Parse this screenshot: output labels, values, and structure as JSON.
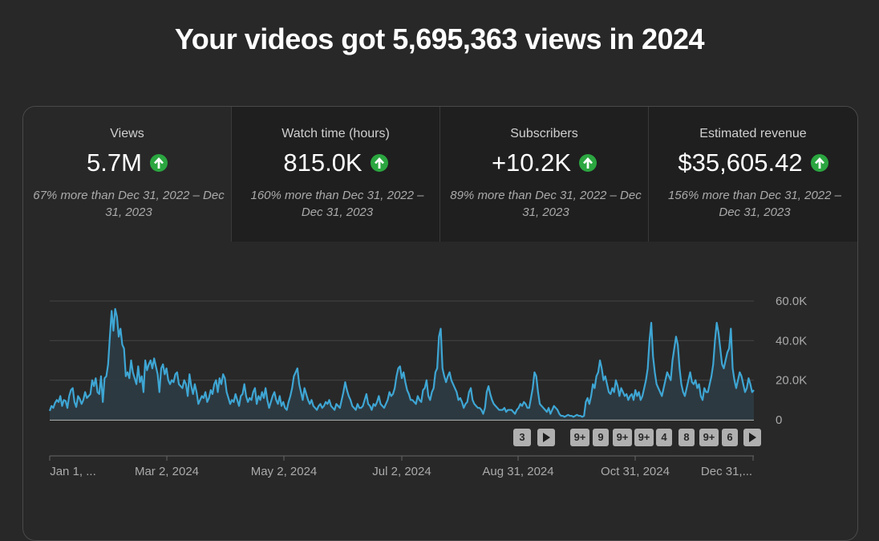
{
  "headline": "Your videos got 5,695,363 views in 2024",
  "metrics": [
    {
      "label": "Views",
      "value": "5.7M",
      "note": "67% more than Dec 31, 2022 – Dec 31, 2023",
      "trend_icon": "arrow-up-icon"
    },
    {
      "label": "Watch time (hours)",
      "value": "815.0K",
      "note": "160% more than Dec 31, 2022 – Dec 31, 2023",
      "trend_icon": "arrow-up-icon"
    },
    {
      "label": "Subscribers",
      "value": "+10.2K",
      "note": "89% more than Dec 31, 2022 – Dec 31, 2023",
      "trend_icon": "arrow-up-icon"
    },
    {
      "label": "Estimated revenue",
      "value": "$35,605.42",
      "note": "156% more than Dec 31, 2022 – Dec 31, 2023",
      "trend_icon": "arrow-up-icon"
    }
  ],
  "colors": {
    "line": "#3ea6d4",
    "area": "#2d3b42",
    "up": "#2ba640"
  },
  "chart_data": {
    "type": "area",
    "series_name": "Views",
    "x_tick_labels": [
      "Jan 1, ...",
      "Mar 2, 2024",
      "May 2, 2024",
      "Jul 2, 2024",
      "Aug 31, 2024",
      "Oct 31, 2024",
      "Dec 31,..."
    ],
    "y_tick_labels": [
      "0",
      "20.0K",
      "40.0K",
      "60.0K"
    ],
    "ylim": [
      0,
      60000
    ],
    "grid": true,
    "values": [
      4500,
      7000,
      6000,
      8500,
      10000,
      9000,
      12000,
      7000,
      10000,
      9500,
      6000,
      12000,
      15000,
      16000,
      9000,
      6500,
      12000,
      10500,
      8000,
      10000,
      14000,
      11000,
      12000,
      13000,
      20000,
      17000,
      21000,
      14000,
      13000,
      22000,
      9000,
      21000,
      22000,
      28000,
      42000,
      55000,
      45000,
      56000,
      52000,
      42000,
      46000,
      38000,
      36000,
      22000,
      24000,
      21000,
      30000,
      24000,
      21000,
      18000,
      27000,
      19000,
      22000,
      14000,
      30000,
      25000,
      28000,
      30000,
      26000,
      31000,
      27000,
      23000,
      14000,
      26000,
      28000,
      23000,
      26000,
      20000,
      18000,
      20000,
      19000,
      23000,
      24000,
      18000,
      17000,
      16000,
      20000,
      18000,
      12000,
      23000,
      17000,
      13000,
      18000,
      14000,
      8000,
      10000,
      12000,
      11000,
      14000,
      9000,
      11000,
      15000,
      13000,
      18000,
      20000,
      14000,
      21000,
      18000,
      23000,
      21000,
      14000,
      11000,
      8000,
      10000,
      9000,
      13000,
      10000,
      7000,
      12000,
      13000,
      18000,
      12000,
      9000,
      11000,
      10000,
      14000,
      16000,
      8000,
      12000,
      10000,
      14000,
      11000,
      16000,
      10000,
      6000,
      9000,
      12000,
      14000,
      10000,
      8000,
      12000,
      7000,
      9000,
      6000,
      5000,
      9000,
      12000,
      16000,
      22000,
      24000,
      26000,
      18000,
      14000,
      10000,
      16000,
      13000,
      10000,
      8000,
      10000,
      7000,
      6000,
      5000,
      7000,
      8000,
      6000,
      7000,
      9000,
      8000,
      10000,
      7000,
      6000,
      5000,
      8000,
      7000,
      6000,
      10000,
      14000,
      19000,
      15000,
      12000,
      10000,
      7000,
      6000,
      5000,
      8000,
      6000,
      6000,
      7000,
      10000,
      13000,
      8000,
      7000,
      5000,
      8000,
      7000,
      9000,
      12000,
      8000,
      7000,
      6000,
      8000,
      10000,
      14000,
      12000,
      13000,
      16000,
      22000,
      26000,
      27000,
      21000,
      24000,
      19000,
      15000,
      13000,
      10000,
      10000,
      9000,
      8000,
      12000,
      10000,
      9000,
      15000,
      16000,
      20000,
      12000,
      10000,
      14000,
      16000,
      24000,
      26000,
      42000,
      46000,
      26000,
      22000,
      19000,
      22000,
      24000,
      20000,
      18000,
      16000,
      14000,
      10000,
      11000,
      9000,
      6000,
      8000,
      9000,
      14000,
      16000,
      10000,
      8000,
      7000,
      6000,
      6000,
      5000,
      3000,
      6000,
      14000,
      17000,
      13000,
      10000,
      8000,
      7000,
      6000,
      5000,
      5000,
      5000,
      6000,
      4000,
      5000,
      5000,
      5000,
      4000,
      3000,
      5000,
      6000,
      8000,
      7000,
      9000,
      8000,
      6000,
      6000,
      11000,
      16000,
      24000,
      22000,
      14000,
      8000,
      7000,
      6000,
      5000,
      4000,
      6000,
      3000,
      5000,
      7000,
      6000,
      5000,
      3000,
      2000,
      2000,
      1500,
      2000,
      2500,
      2000,
      2000,
      1500,
      2000,
      2500,
      2000,
      2000,
      1500,
      2000,
      9000,
      11000,
      8000,
      12000,
      18000,
      16000,
      22000,
      24000,
      30000,
      26000,
      20000,
      22000,
      18000,
      14000,
      13000,
      16000,
      14000,
      20000,
      17000,
      12000,
      16000,
      14000,
      12000,
      13000,
      10000,
      12000,
      13000,
      10000,
      15000,
      12000,
      14000,
      10000,
      12000,
      16000,
      20000,
      26000,
      40000,
      49000,
      32000,
      24000,
      18000,
      16000,
      14000,
      12000,
      16000,
      20000,
      24000,
      22000,
      20000,
      30000,
      36000,
      42000,
      38000,
      26000,
      18000,
      14000,
      12000,
      16000,
      20000,
      24000,
      19000,
      18000,
      20000,
      16000,
      18000,
      12000,
      10000,
      16000,
      14000,
      14000,
      18000,
      22000,
      28000,
      40000,
      49000,
      44000,
      36000,
      28000,
      26000,
      30000,
      34000,
      36000,
      46000,
      26000,
      20000,
      16000,
      20000,
      24000,
      22000,
      18000,
      14000,
      16000,
      21000,
      18000,
      14000,
      15000
    ]
  },
  "pagination_badges": [
    "3",
    "9+",
    "9",
    "9+",
    "9+",
    "4",
    "8",
    "9+",
    "6"
  ]
}
